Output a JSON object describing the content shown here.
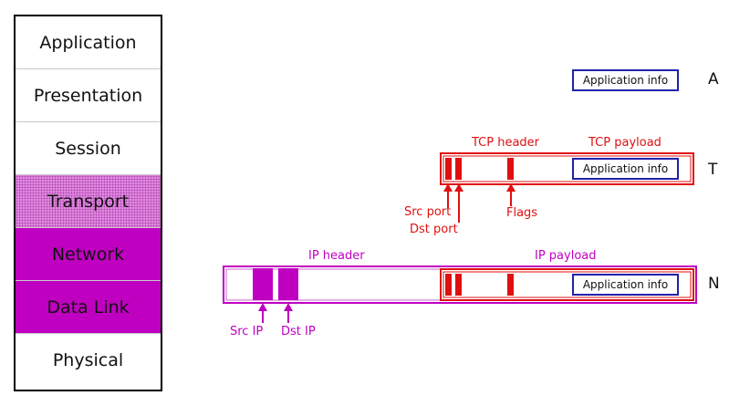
{
  "layers": [
    {
      "label": "Application"
    },
    {
      "label": "Presentation"
    },
    {
      "label": "Session"
    },
    {
      "label": "Transport"
    },
    {
      "label": "Network"
    },
    {
      "label": "Data Link"
    },
    {
      "label": "Physical"
    }
  ],
  "app_info_label": "Application info",
  "side_labels": {
    "application": "A",
    "transport": "T",
    "network": "N"
  },
  "tcp": {
    "header_label": "TCP header",
    "payload_label": "TCP payload",
    "src_port_label": "Src port",
    "dst_port_label": "Dst port",
    "flags_label": "Flags"
  },
  "ip": {
    "header_label": "IP header",
    "payload_label": "IP payload",
    "src_ip_label": "Src IP",
    "dst_ip_label": "Dst IP"
  },
  "colors": {
    "tcp_red": "#e01010",
    "ip_magenta": "#c000c0",
    "app_box_blue": "#2222aa",
    "transport_fill": "#e898e8",
    "network_fill": "#c000c0"
  }
}
